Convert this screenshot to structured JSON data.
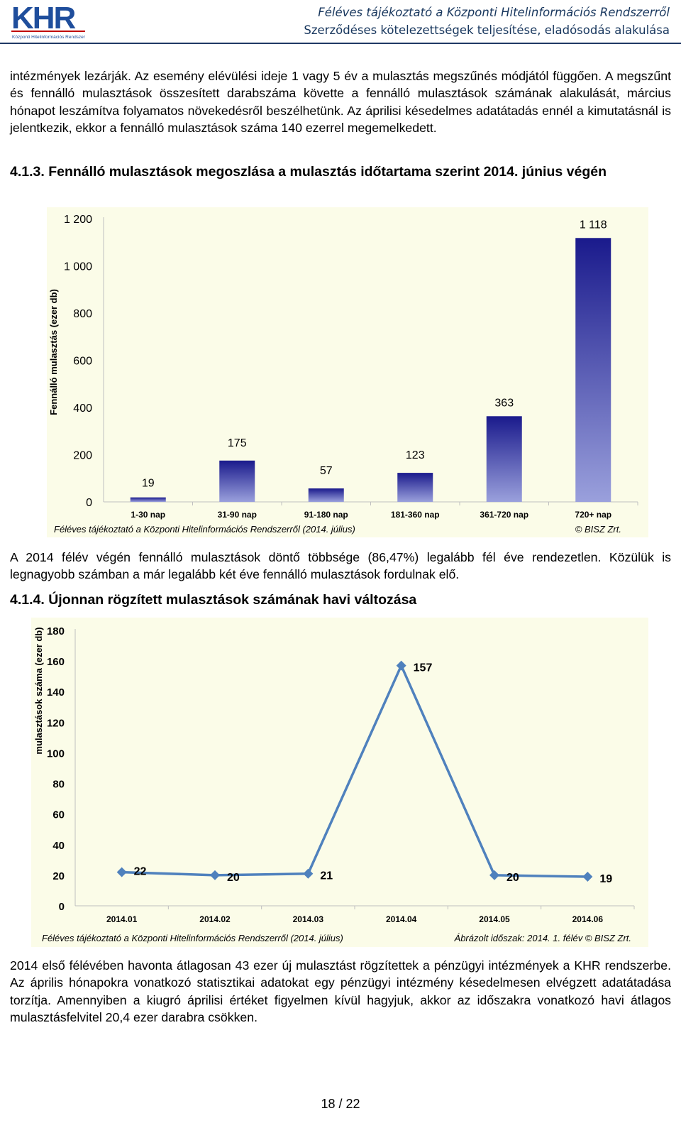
{
  "header": {
    "logo_text": "KHR",
    "logo_subtitle": "Központi Hitelinformációs Rendszer",
    "title_line1": "Féléves tájékoztató a Központi Hitelinformációs Rendszerről",
    "title_line2": "Szerződéses kötelezettségek teljesítése, eladósodás alakulása"
  },
  "paragraph1": "intézmények lezárják. Az esemény elévülési ideje 1 vagy 5 év a mulasztás megszűnés módjától függően. A megszűnt és fennálló mulasztások összesített darabszáma követte a fennálló mulasztások számának alakulását, március hónapot leszámítva folyamatos növekedésről beszélhetünk. Az áprilisi késedelmes adatátadás ennél a kimutatásnál is jelentkezik, ekkor a fennálló mulasztások száma 140 ezerrel megemelkedett.",
  "heading1": "4.1.3. Fennálló mulasztások megoszlása a mulasztás időtartama szerint 2014. június végén",
  "paragraph2": "A 2014 félév végén fennálló mulasztások döntő többsége (86,47%) legalább fél éve rendezetlen. Közülük is legnagyobb számban a már legalább két éve fennálló mulasztások fordulnak elő.",
  "heading2": "4.1.4. Újonnan rögzített mulasztások számának havi változása",
  "paragraph3": "2014 első félévében havonta átlagosan 43 ezer új mulasztást rögzítettek a pénzügyi intézmények a KHR rendszerbe. Az április hónapokra vonatkozó statisztikai adatokat egy pénzügyi intézmény késedelmesen elvégzett adatátadása torzítja. Amennyiben a kiugró áprilisi értéket figyelmen kívül hagyjuk, akkor az időszakra vonatkozó havi átlagos mulasztásfelvitel 20,4 ezer darabra csökken.",
  "page_number": "18 / 22",
  "colors": {
    "header_text": "#17365d",
    "bar_dark": "#1a1a8c",
    "bar_light": "#9aa0dc",
    "line": "#4f81bd",
    "plot_bg": "#fbfce8"
  },
  "chart_data": [
    {
      "type": "bar",
      "title": "",
      "ylabel": "Fennálló mulasztás (ezer db)",
      "xlabel": "",
      "categories": [
        "1-30 nap",
        "31-90 nap",
        "91-180 nap",
        "181-360 nap",
        "361-720 nap",
        "720+ nap"
      ],
      "values": [
        19,
        175,
        57,
        123,
        363,
        1118
      ],
      "value_labels": [
        "19",
        "175",
        "57",
        "123",
        "363",
        "1 118"
      ],
      "yticks": [
        "0",
        "200",
        "400",
        "600",
        "800",
        "1 000",
        "1 200"
      ],
      "ylim": [
        0,
        1200
      ],
      "grid": false,
      "source_left": "Féléves tájékoztató a Központi Hitelinformációs Rendszerről (2014. július)",
      "source_right": "© BISZ Zrt."
    },
    {
      "type": "line",
      "title": "",
      "ylabel": "mulasztások száma (ezer db)",
      "xlabel": "",
      "categories": [
        "2014.01",
        "2014.02",
        "2014.03",
        "2014.04",
        "2014.05",
        "2014.06"
      ],
      "values": [
        22,
        20,
        21,
        157,
        20,
        19
      ],
      "yticks": [
        "0",
        "20",
        "40",
        "60",
        "80",
        "100",
        "120",
        "140",
        "160",
        "180"
      ],
      "ylim": [
        0,
        180
      ],
      "grid": false,
      "source_left": "Féléves tájékoztató a Központi Hitelinformációs Rendszerről (2014. július)",
      "source_right": "Ábrázolt időszak: 2014. 1. félév © BISZ Zrt."
    }
  ]
}
